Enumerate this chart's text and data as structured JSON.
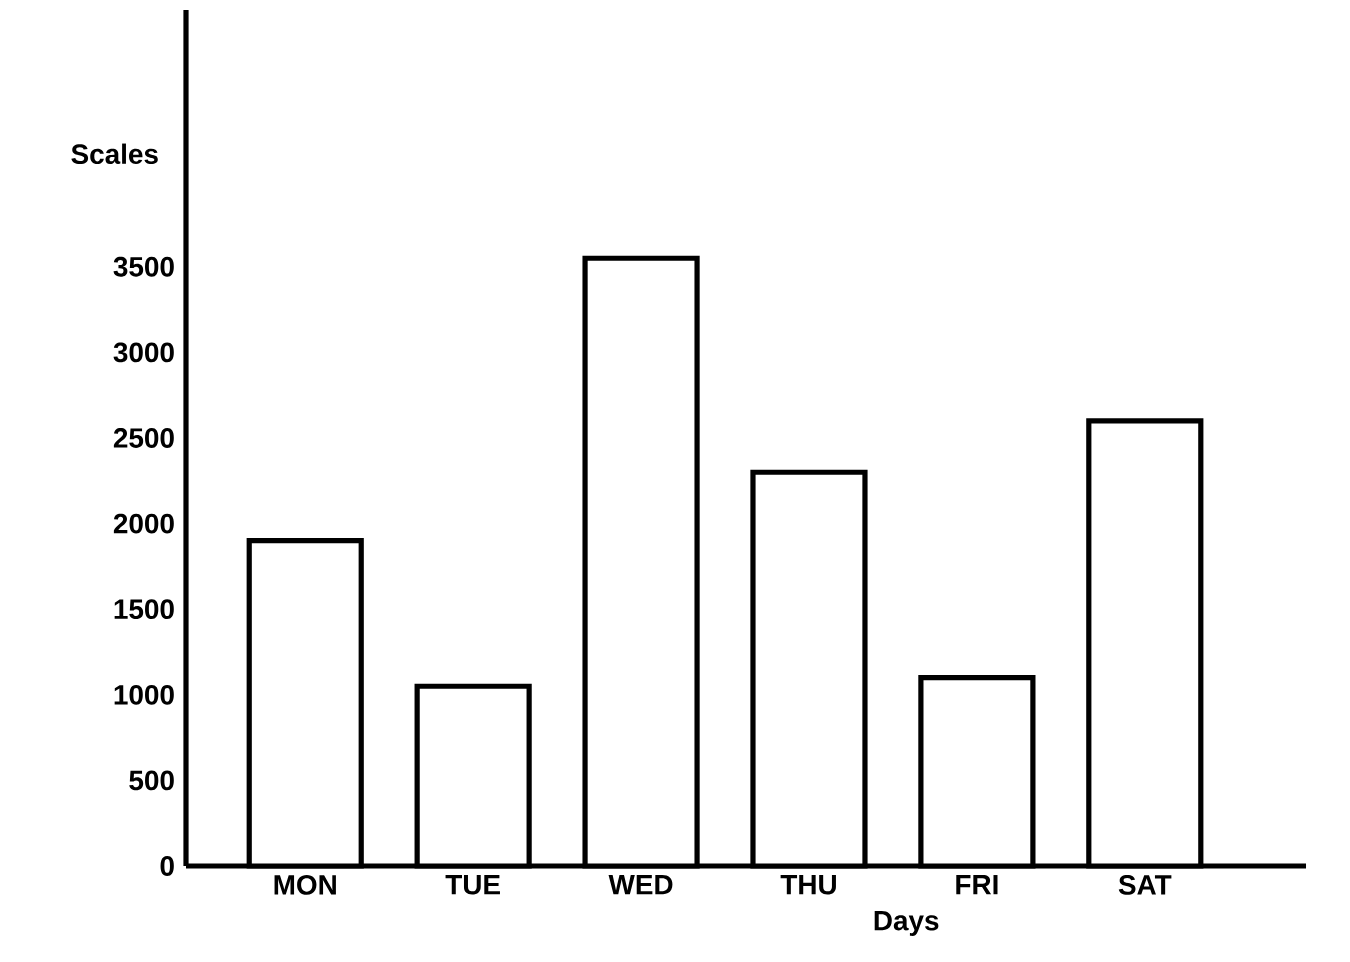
{
  "chart_data": {
    "type": "bar",
    "xlabel": "Days",
    "ylabel": "Scales",
    "categories": [
      "MON",
      "TUE",
      "WED",
      "THU",
      "FRI",
      "SAT"
    ],
    "values": [
      1900,
      1050,
      3550,
      2300,
      1100,
      2600
    ],
    "color": "#ffffff",
    "ylim": [
      0,
      5000
    ],
    "yticks": [
      0,
      500,
      1000,
      1500,
      2000,
      2500,
      3000,
      3500
    ]
  }
}
